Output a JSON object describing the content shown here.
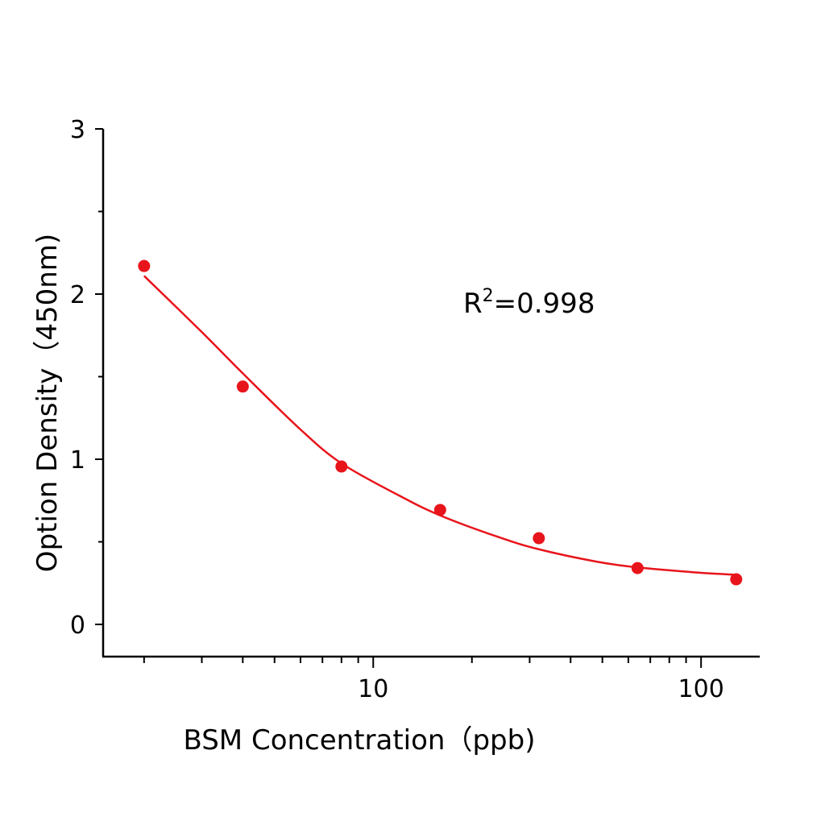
{
  "chart_data": {
    "type": "scatter",
    "title": "",
    "xlabel": "BSM Concentration（ppb)",
    "ylabel": "Option Density（450nm)",
    "xscale": "log",
    "xlim": [
      1.5,
      151
    ],
    "ylim": [
      -0.195,
      3
    ],
    "grid": false,
    "legend": "none",
    "x_ticks": [
      10,
      100
    ],
    "x_tick_labels": [
      "10",
      "100"
    ],
    "x_minor_ticks": [
      2,
      3,
      4,
      5,
      6,
      7,
      8,
      9,
      20,
      30,
      40,
      50,
      60,
      70,
      80,
      90
    ],
    "y_ticks": [
      0,
      1,
      2,
      3
    ],
    "y_tick_labels": [
      "0",
      "1",
      "2",
      "3"
    ],
    "y_minor_ticks": [
      0.5,
      1.5,
      2.5
    ],
    "annotation": {
      "prefix": "R",
      "superscript": "2",
      "text": "=0.998"
    },
    "series": [
      {
        "x": [
          2,
          4,
          8,
          16,
          32,
          64,
          128
        ],
        "y": [
          2.17,
          1.44,
          0.956,
          0.693,
          0.522,
          0.341,
          0.273
        ],
        "marker": "circle",
        "color": "#e8141b"
      }
    ],
    "fit_curve": {
      "x": [
        2,
        3,
        4,
        6,
        8,
        12,
        16,
        24,
        32,
        48,
        64,
        96,
        128
      ],
      "y": [
        2.11,
        1.77,
        1.52,
        1.18,
        0.975,
        0.78,
        0.66,
        0.53,
        0.455,
        0.38,
        0.345,
        0.315,
        0.3
      ],
      "color": "#e8141b"
    }
  }
}
